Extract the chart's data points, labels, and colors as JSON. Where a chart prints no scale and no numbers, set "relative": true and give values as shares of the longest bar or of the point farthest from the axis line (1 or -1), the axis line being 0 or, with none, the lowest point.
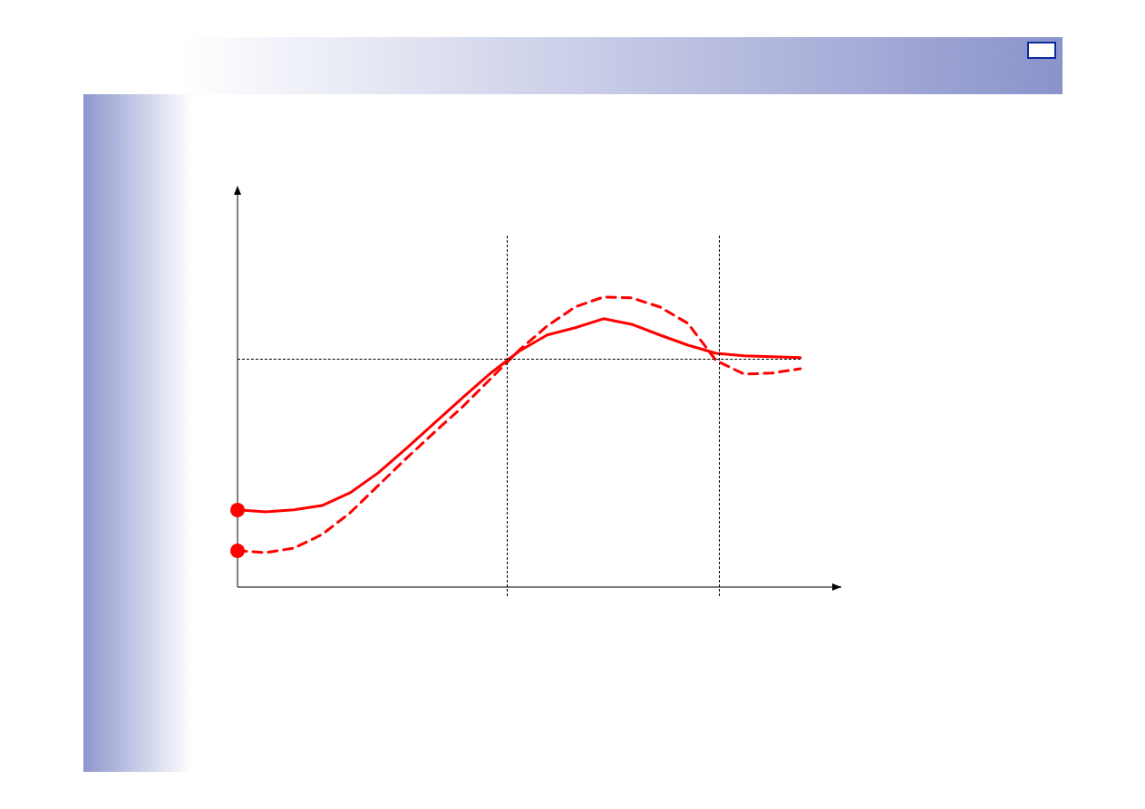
{
  "chart_data": {
    "type": "line",
    "relative": true,
    "tick_labels": false,
    "legend": false,
    "categories": [
      null,
      null,
      null,
      null,
      null,
      null,
      null,
      null,
      null,
      null,
      null,
      null,
      null,
      null,
      null,
      null,
      null,
      null,
      null,
      null,
      null
    ],
    "series": [
      {
        "color": "#ff0000",
        "line_style": "solid",
        "values": [
          0.266,
          0.259,
          0.266,
          0.281,
          0.325,
          0.394,
          0.478,
          0.566,
          0.653,
          0.738,
          0.813,
          0.869,
          0.894,
          0.925,
          0.906,
          0.869,
          0.834,
          0.806,
          0.797,
          0.794,
          0.791
        ]
      },
      {
        "color": "#ff0000",
        "line_style": "dashed",
        "values": [
          0.125,
          0.119,
          0.134,
          0.181,
          0.256,
          0.35,
          0.444,
          0.534,
          0.622,
          0.719,
          0.816,
          0.9,
          0.966,
          1.0,
          0.997,
          0.966,
          0.909,
          0.781,
          0.734,
          0.738,
          0.753
        ]
      }
    ]
  }
}
